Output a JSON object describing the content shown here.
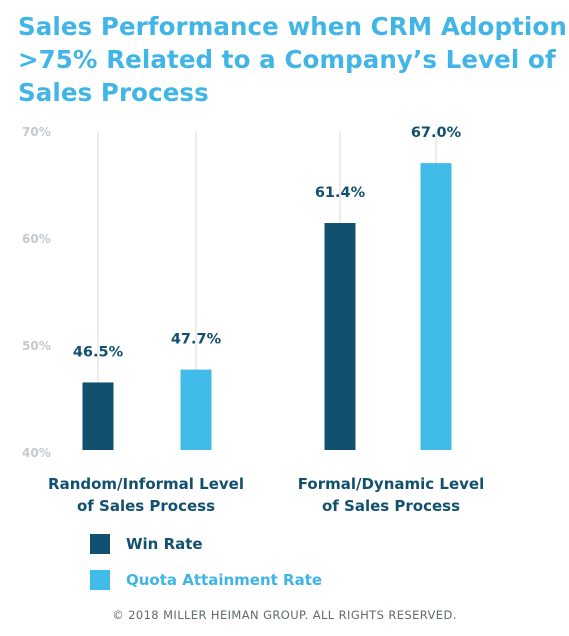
{
  "chart_data": {
    "type": "bar",
    "title_lines": [
      "Sales Performance when CRM Adoption",
      ">75% Related to a Company’s Level of",
      "Sales Process"
    ],
    "category_label_lines": [
      [
        "Random/Informal Level",
        "of Sales Process"
      ],
      [
        "Formal/Dynamic Level",
        "of Sales Process"
      ]
    ],
    "series": [
      {
        "name": "Win Rate",
        "color": "#12506f",
        "values": [
          46.5,
          61.4
        ],
        "labels": [
          "46.5%",
          "61.4%"
        ]
      },
      {
        "name": "Quota Attainment Rate",
        "color": "#41bce8",
        "values": [
          47.7,
          67.0
        ],
        "labels": [
          "47.7%",
          "67.0%"
        ]
      }
    ],
    "ylim": [
      40,
      70
    ],
    "yticks": [
      {
        "value": 70,
        "label": "70%"
      },
      {
        "value": 60,
        "label": "60%"
      },
      {
        "value": 50,
        "label": "50%"
      },
      {
        "value": 40,
        "label": "40%"
      }
    ],
    "grid": false,
    "legend_position": "bottom-left"
  },
  "footer": "© 2018 MILLER HEIMAN GROUP. ALL RIGHTS RESERVED."
}
